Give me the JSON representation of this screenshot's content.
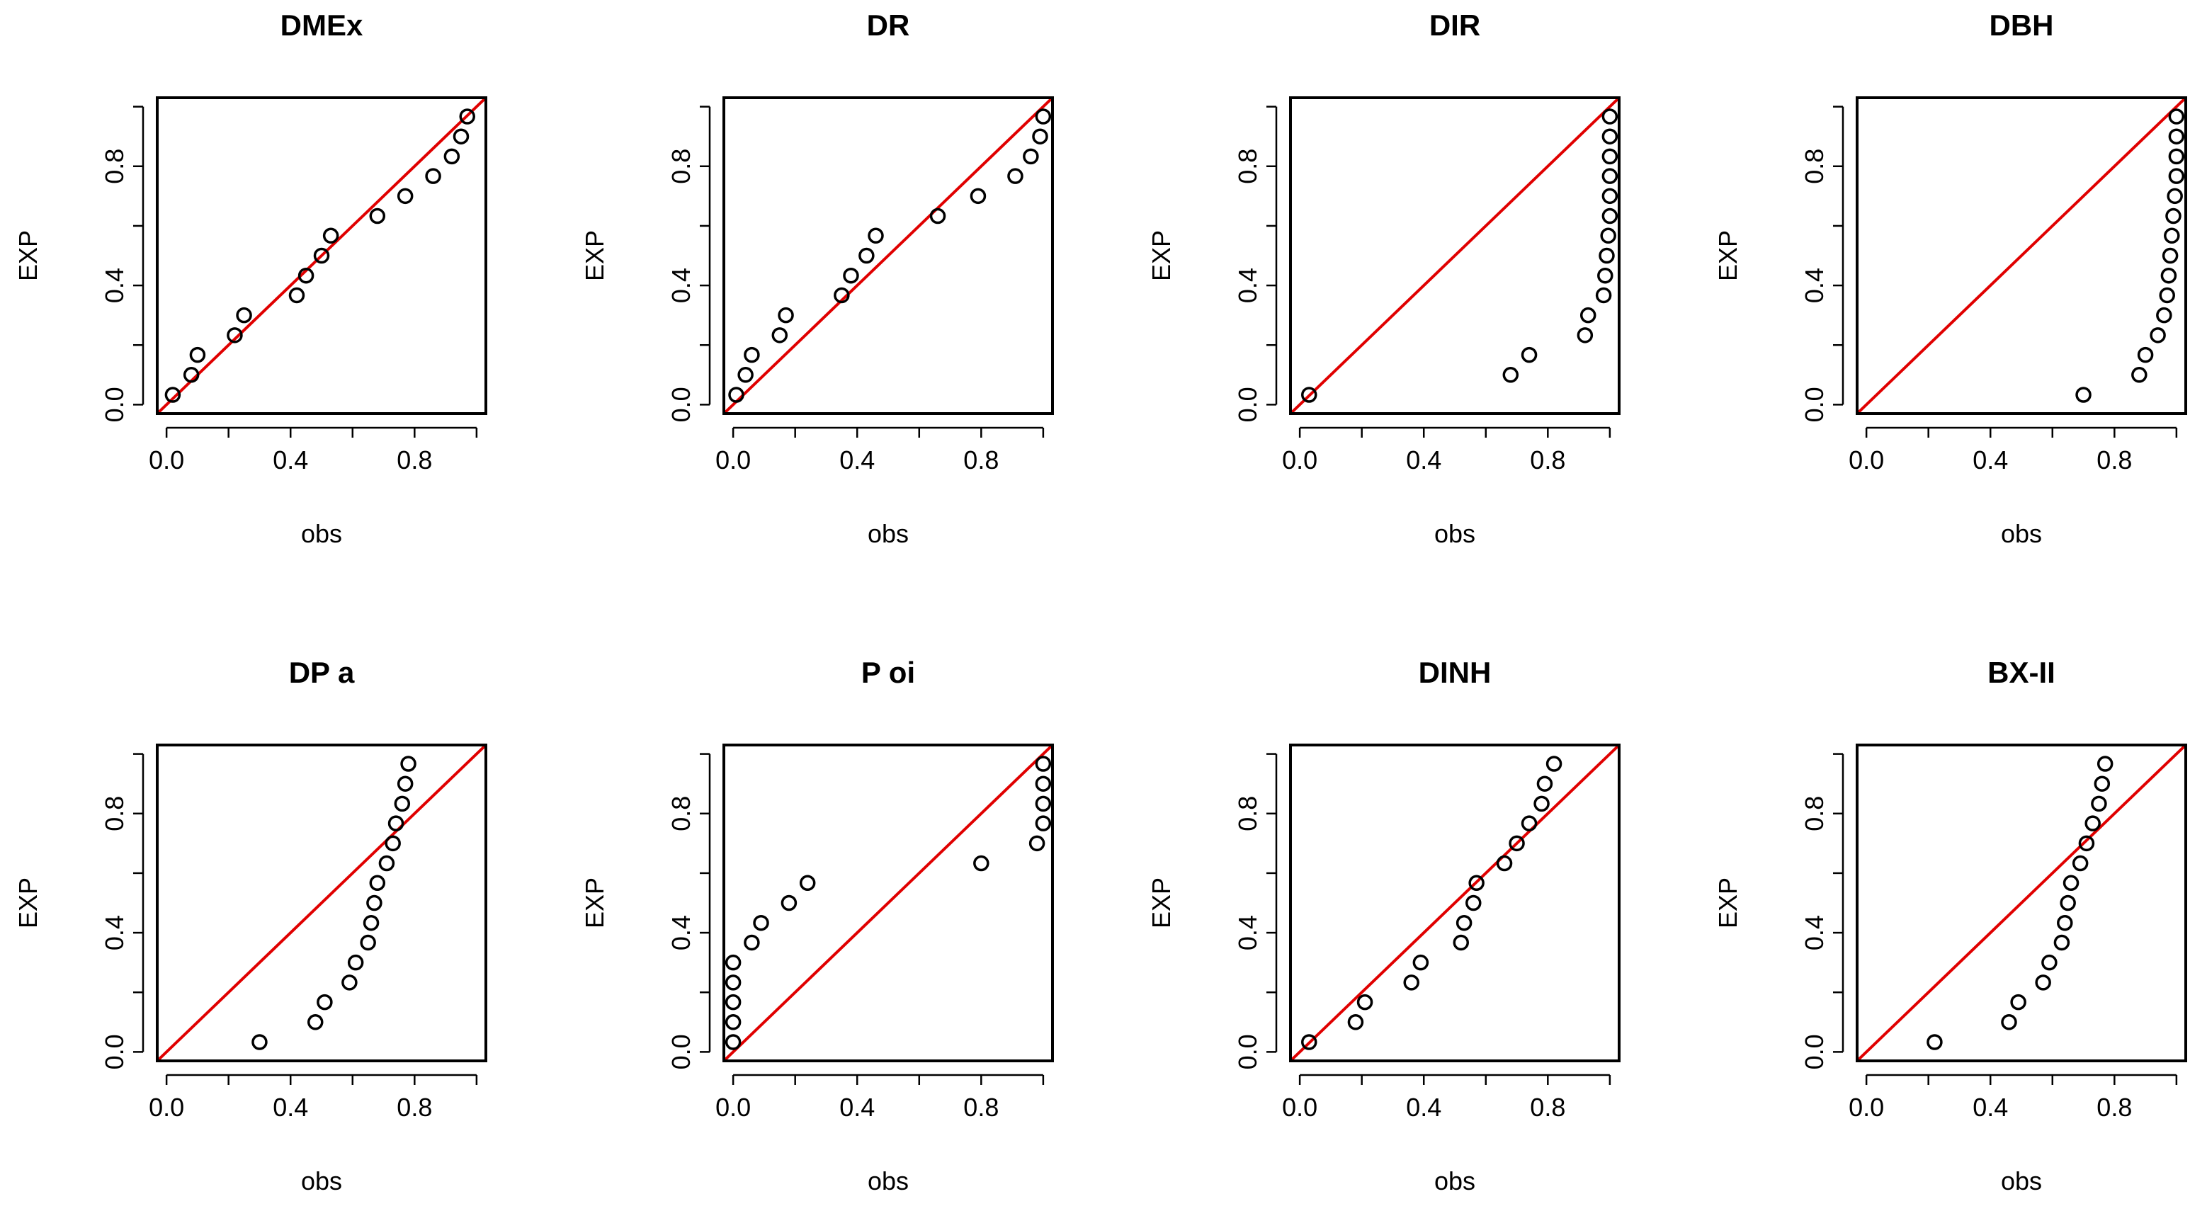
{
  "colors": {
    "ref_line": "#e00000",
    "points": "#000000",
    "frame": "#000000"
  },
  "axis_ticks": {
    "x": [
      "0.0",
      "0.4",
      "0.8"
    ],
    "y": [
      "0.0",
      "0.4",
      "0.8"
    ]
  },
  "chart_data": [
    {
      "type": "scatter",
      "title": "DMEx",
      "xlabel": "obs",
      "ylabel": "EXP",
      "xlim": [
        -0.03,
        1.03
      ],
      "ylim": [
        -0.03,
        1.03
      ],
      "reference_line": "y = x",
      "points": [
        [
          0.02,
          0.033
        ],
        [
          0.08,
          0.1
        ],
        [
          0.1,
          0.167
        ],
        [
          0.22,
          0.233
        ],
        [
          0.25,
          0.3
        ],
        [
          0.42,
          0.367
        ],
        [
          0.45,
          0.433
        ],
        [
          0.5,
          0.5
        ],
        [
          0.53,
          0.567
        ],
        [
          0.68,
          0.633
        ],
        [
          0.77,
          0.7
        ],
        [
          0.86,
          0.767
        ],
        [
          0.92,
          0.833
        ],
        [
          0.95,
          0.9
        ],
        [
          0.97,
          0.967
        ]
      ]
    },
    {
      "type": "scatter",
      "title": "DR",
      "xlabel": "obs",
      "ylabel": "EXP",
      "xlim": [
        -0.03,
        1.03
      ],
      "ylim": [
        -0.03,
        1.03
      ],
      "reference_line": "y = x",
      "points": [
        [
          0.01,
          0.033
        ],
        [
          0.04,
          0.1
        ],
        [
          0.06,
          0.167
        ],
        [
          0.15,
          0.233
        ],
        [
          0.17,
          0.3
        ],
        [
          0.35,
          0.367
        ],
        [
          0.38,
          0.433
        ],
        [
          0.43,
          0.5
        ],
        [
          0.46,
          0.567
        ],
        [
          0.66,
          0.633
        ],
        [
          0.79,
          0.7
        ],
        [
          0.91,
          0.767
        ],
        [
          0.96,
          0.833
        ],
        [
          0.99,
          0.9
        ],
        [
          1.0,
          0.967
        ]
      ]
    },
    {
      "type": "scatter",
      "title": "DIR",
      "xlabel": "obs",
      "ylabel": "EXP",
      "xlim": [
        -0.03,
        1.03
      ],
      "ylim": [
        -0.03,
        1.03
      ],
      "reference_line": "y = x",
      "points": [
        [
          0.03,
          0.033
        ],
        [
          0.68,
          0.1
        ],
        [
          0.74,
          0.167
        ],
        [
          0.92,
          0.233
        ],
        [
          0.93,
          0.3
        ],
        [
          0.98,
          0.367
        ],
        [
          0.985,
          0.433
        ],
        [
          0.99,
          0.5
        ],
        [
          0.995,
          0.567
        ],
        [
          1.0,
          0.633
        ],
        [
          1.0,
          0.7
        ],
        [
          1.0,
          0.767
        ],
        [
          1.0,
          0.833
        ],
        [
          1.0,
          0.9
        ],
        [
          1.0,
          0.967
        ]
      ]
    },
    {
      "type": "scatter",
      "title": "DBH",
      "xlabel": "obs",
      "ylabel": "EXP",
      "xlim": [
        -0.03,
        1.03
      ],
      "ylim": [
        -0.03,
        1.03
      ],
      "reference_line": "y = x",
      "points": [
        [
          0.7,
          0.033
        ],
        [
          0.88,
          0.1
        ],
        [
          0.9,
          0.167
        ],
        [
          0.94,
          0.233
        ],
        [
          0.96,
          0.3
        ],
        [
          0.97,
          0.367
        ],
        [
          0.975,
          0.433
        ],
        [
          0.98,
          0.5
        ],
        [
          0.985,
          0.567
        ],
        [
          0.99,
          0.633
        ],
        [
          0.995,
          0.7
        ],
        [
          1.0,
          0.767
        ],
        [
          1.0,
          0.833
        ],
        [
          1.0,
          0.9
        ],
        [
          1.0,
          0.967
        ]
      ]
    },
    {
      "type": "scatter",
      "title": "DP  a",
      "xlabel": "obs",
      "ylabel": "EXP",
      "xlim": [
        -0.03,
        1.03
      ],
      "ylim": [
        -0.03,
        1.03
      ],
      "reference_line": "y = x",
      "points": [
        [
          0.3,
          0.033
        ],
        [
          0.48,
          0.1
        ],
        [
          0.51,
          0.167
        ],
        [
          0.59,
          0.233
        ],
        [
          0.61,
          0.3
        ],
        [
          0.65,
          0.367
        ],
        [
          0.66,
          0.433
        ],
        [
          0.67,
          0.5
        ],
        [
          0.68,
          0.567
        ],
        [
          0.71,
          0.633
        ],
        [
          0.73,
          0.7
        ],
        [
          0.74,
          0.767
        ],
        [
          0.76,
          0.833
        ],
        [
          0.77,
          0.9
        ],
        [
          0.78,
          0.967
        ]
      ]
    },
    {
      "type": "scatter",
      "title": "P oi",
      "xlabel": "obs",
      "ylabel": "EXP",
      "xlim": [
        -0.03,
        1.03
      ],
      "ylim": [
        -0.03,
        1.03
      ],
      "reference_line": "y = x",
      "points": [
        [
          0.0,
          0.033
        ],
        [
          0.0,
          0.1
        ],
        [
          0.0,
          0.167
        ],
        [
          0.0,
          0.233
        ],
        [
          0.0,
          0.3
        ],
        [
          0.06,
          0.367
        ],
        [
          0.09,
          0.433
        ],
        [
          0.18,
          0.5
        ],
        [
          0.24,
          0.567
        ],
        [
          0.8,
          0.633
        ],
        [
          0.98,
          0.7
        ],
        [
          1.0,
          0.767
        ],
        [
          1.0,
          0.833
        ],
        [
          1.0,
          0.9
        ],
        [
          1.0,
          0.967
        ]
      ]
    },
    {
      "type": "scatter",
      "title": "DINH",
      "xlabel": "obs",
      "ylabel": "EXP",
      "xlim": [
        -0.03,
        1.03
      ],
      "ylim": [
        -0.03,
        1.03
      ],
      "reference_line": "y = x",
      "points": [
        [
          0.03,
          0.033
        ],
        [
          0.18,
          0.1
        ],
        [
          0.21,
          0.167
        ],
        [
          0.36,
          0.233
        ],
        [
          0.39,
          0.3
        ],
        [
          0.52,
          0.367
        ],
        [
          0.53,
          0.433
        ],
        [
          0.56,
          0.5
        ],
        [
          0.57,
          0.567
        ],
        [
          0.66,
          0.633
        ],
        [
          0.7,
          0.7
        ],
        [
          0.74,
          0.767
        ],
        [
          0.78,
          0.833
        ],
        [
          0.79,
          0.9
        ],
        [
          0.82,
          0.967
        ]
      ]
    },
    {
      "type": "scatter",
      "title": "BX-II",
      "xlabel": "obs",
      "ylabel": "EXP",
      "xlim": [
        -0.03,
        1.03
      ],
      "ylim": [
        -0.03,
        1.03
      ],
      "reference_line": "y = x",
      "points": [
        [
          0.22,
          0.033
        ],
        [
          0.46,
          0.1
        ],
        [
          0.49,
          0.167
        ],
        [
          0.57,
          0.233
        ],
        [
          0.59,
          0.3
        ],
        [
          0.63,
          0.367
        ],
        [
          0.64,
          0.433
        ],
        [
          0.65,
          0.5
        ],
        [
          0.66,
          0.567
        ],
        [
          0.69,
          0.633
        ],
        [
          0.71,
          0.7
        ],
        [
          0.73,
          0.767
        ],
        [
          0.75,
          0.833
        ],
        [
          0.76,
          0.9
        ],
        [
          0.77,
          0.967
        ]
      ]
    }
  ]
}
